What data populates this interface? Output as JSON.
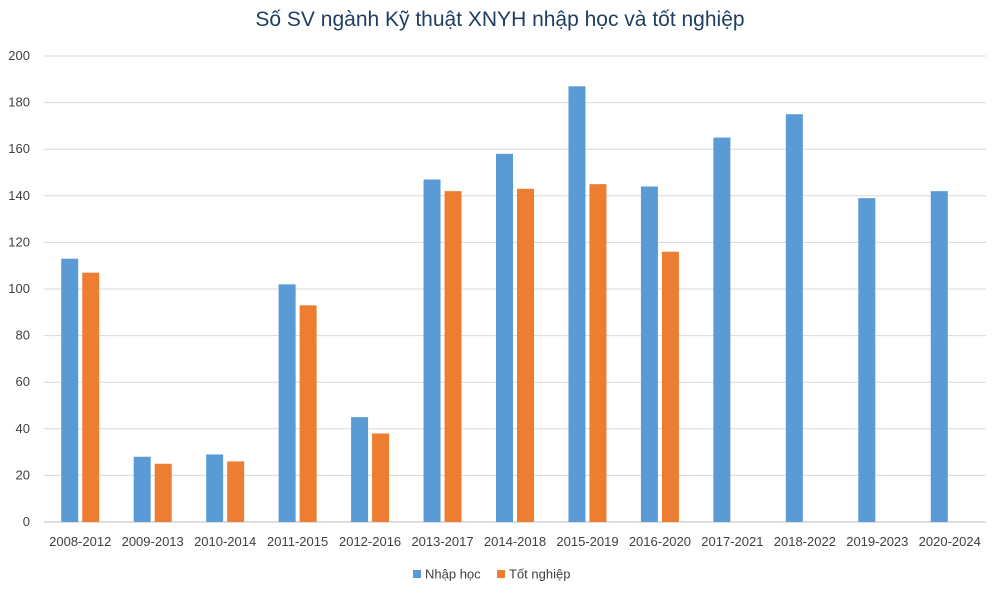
{
  "chart_data": {
    "type": "bar",
    "title": "Số SV ngành Kỹ thuật XNYH nhập học và tốt nghiệp",
    "xlabel": "",
    "ylabel": "",
    "ylim": [
      0,
      200
    ],
    "yticks": [
      0,
      20,
      40,
      60,
      80,
      100,
      120,
      140,
      160,
      180,
      200
    ],
    "grid": true,
    "legend_position": "bottom",
    "categories": [
      "2008-2012",
      "2009-2013",
      "2010-2014",
      "2011-2015",
      "2012-2016",
      "2013-2017",
      "2014-2018",
      "2015-2019",
      "2016-2020",
      "2017-2021",
      "2018-2022",
      "2019-2023",
      "2020-2024"
    ],
    "series": [
      {
        "name": "Nhập học",
        "color": "#5b9bd5",
        "values": [
          113,
          28,
          29,
          102,
          45,
          147,
          158,
          187,
          144,
          165,
          175,
          139,
          142
        ]
      },
      {
        "name": "Tốt nghiệp",
        "color": "#ed7d31",
        "values": [
          107,
          25,
          26,
          93,
          38,
          142,
          143,
          145,
          116,
          null,
          null,
          null,
          null
        ]
      }
    ]
  }
}
